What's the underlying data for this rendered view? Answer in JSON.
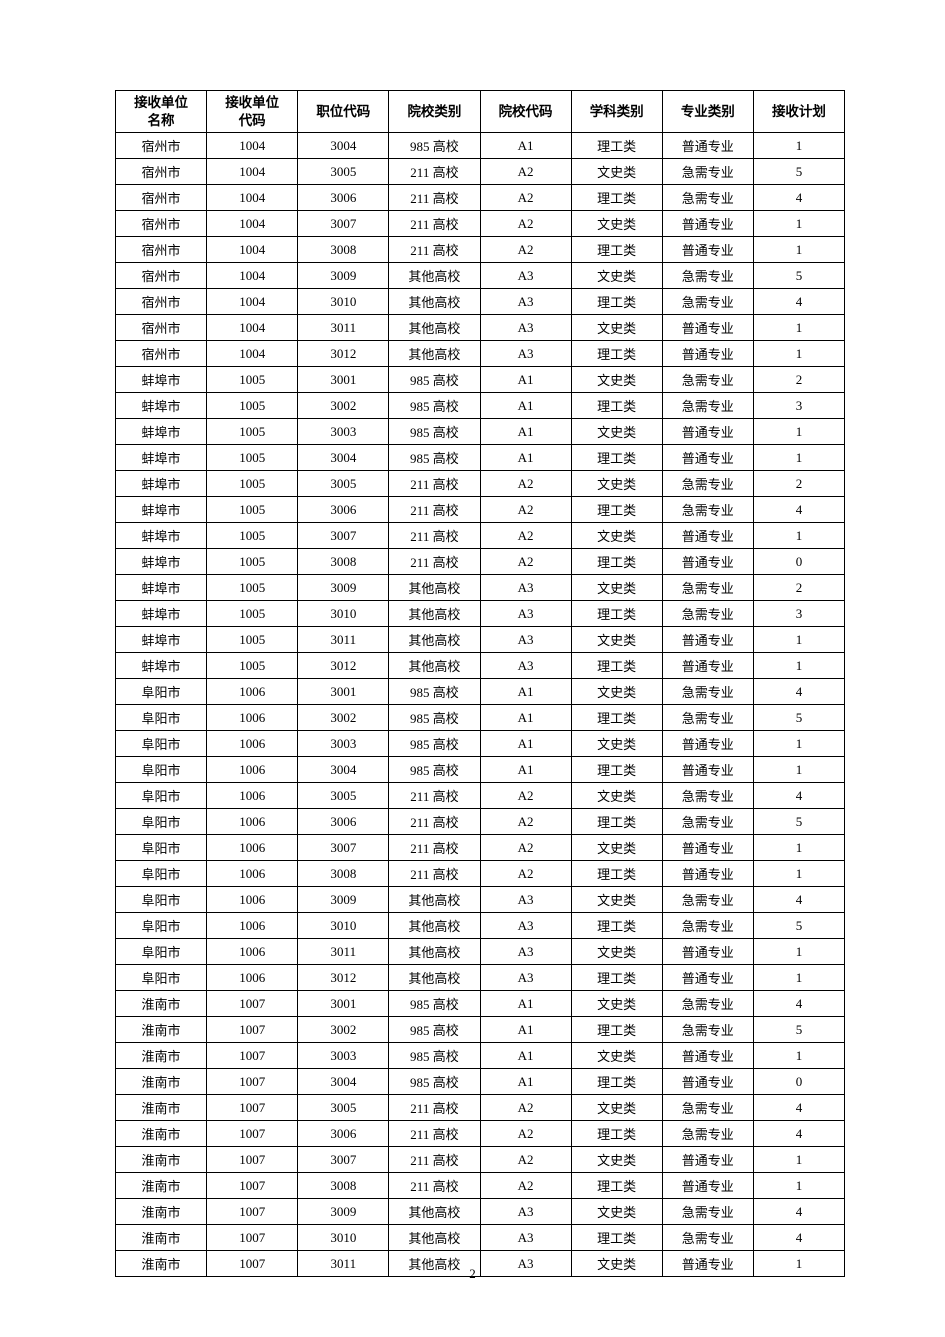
{
  "page_number": "2",
  "table": {
    "columns": [
      "接收单位\n名称",
      "接收单位\n代码",
      "职位代码",
      "院校类别",
      "院校代码",
      "学科类别",
      "专业类别",
      "接收计划"
    ],
    "rows": [
      [
        "宿州市",
        "1004",
        "3004",
        "985 高校",
        "A1",
        "理工类",
        "普通专业",
        "1"
      ],
      [
        "宿州市",
        "1004",
        "3005",
        "211 高校",
        "A2",
        "文史类",
        "急需专业",
        "5"
      ],
      [
        "宿州市",
        "1004",
        "3006",
        "211 高校",
        "A2",
        "理工类",
        "急需专业",
        "4"
      ],
      [
        "宿州市",
        "1004",
        "3007",
        "211 高校",
        "A2",
        "文史类",
        "普通专业",
        "1"
      ],
      [
        "宿州市",
        "1004",
        "3008",
        "211 高校",
        "A2",
        "理工类",
        "普通专业",
        "1"
      ],
      [
        "宿州市",
        "1004",
        "3009",
        "其他高校",
        "A3",
        "文史类",
        "急需专业",
        "5"
      ],
      [
        "宿州市",
        "1004",
        "3010",
        "其他高校",
        "A3",
        "理工类",
        "急需专业",
        "4"
      ],
      [
        "宿州市",
        "1004",
        "3011",
        "其他高校",
        "A3",
        "文史类",
        "普通专业",
        "1"
      ],
      [
        "宿州市",
        "1004",
        "3012",
        "其他高校",
        "A3",
        "理工类",
        "普通专业",
        "1"
      ],
      [
        "蚌埠市",
        "1005",
        "3001",
        "985 高校",
        "A1",
        "文史类",
        "急需专业",
        "2"
      ],
      [
        "蚌埠市",
        "1005",
        "3002",
        "985 高校",
        "A1",
        "理工类",
        "急需专业",
        "3"
      ],
      [
        "蚌埠市",
        "1005",
        "3003",
        "985 高校",
        "A1",
        "文史类",
        "普通专业",
        "1"
      ],
      [
        "蚌埠市",
        "1005",
        "3004",
        "985 高校",
        "A1",
        "理工类",
        "普通专业",
        "1"
      ],
      [
        "蚌埠市",
        "1005",
        "3005",
        "211 高校",
        "A2",
        "文史类",
        "急需专业",
        "2"
      ],
      [
        "蚌埠市",
        "1005",
        "3006",
        "211 高校",
        "A2",
        "理工类",
        "急需专业",
        "4"
      ],
      [
        "蚌埠市",
        "1005",
        "3007",
        "211 高校",
        "A2",
        "文史类",
        "普通专业",
        "1"
      ],
      [
        "蚌埠市",
        "1005",
        "3008",
        "211 高校",
        "A2",
        "理工类",
        "普通专业",
        "0"
      ],
      [
        "蚌埠市",
        "1005",
        "3009",
        "其他高校",
        "A3",
        "文史类",
        "急需专业",
        "2"
      ],
      [
        "蚌埠市",
        "1005",
        "3010",
        "其他高校",
        "A3",
        "理工类",
        "急需专业",
        "3"
      ],
      [
        "蚌埠市",
        "1005",
        "3011",
        "其他高校",
        "A3",
        "文史类",
        "普通专业",
        "1"
      ],
      [
        "蚌埠市",
        "1005",
        "3012",
        "其他高校",
        "A3",
        "理工类",
        "普通专业",
        "1"
      ],
      [
        "阜阳市",
        "1006",
        "3001",
        "985 高校",
        "A1",
        "文史类",
        "急需专业",
        "4"
      ],
      [
        "阜阳市",
        "1006",
        "3002",
        "985 高校",
        "A1",
        "理工类",
        "急需专业",
        "5"
      ],
      [
        "阜阳市",
        "1006",
        "3003",
        "985 高校",
        "A1",
        "文史类",
        "普通专业",
        "1"
      ],
      [
        "阜阳市",
        "1006",
        "3004",
        "985 高校",
        "A1",
        "理工类",
        "普通专业",
        "1"
      ],
      [
        "阜阳市",
        "1006",
        "3005",
        "211 高校",
        "A2",
        "文史类",
        "急需专业",
        "4"
      ],
      [
        "阜阳市",
        "1006",
        "3006",
        "211 高校",
        "A2",
        "理工类",
        "急需专业",
        "5"
      ],
      [
        "阜阳市",
        "1006",
        "3007",
        "211 高校",
        "A2",
        "文史类",
        "普通专业",
        "1"
      ],
      [
        "阜阳市",
        "1006",
        "3008",
        "211 高校",
        "A2",
        "理工类",
        "普通专业",
        "1"
      ],
      [
        "阜阳市",
        "1006",
        "3009",
        "其他高校",
        "A3",
        "文史类",
        "急需专业",
        "4"
      ],
      [
        "阜阳市",
        "1006",
        "3010",
        "其他高校",
        "A3",
        "理工类",
        "急需专业",
        "5"
      ],
      [
        "阜阳市",
        "1006",
        "3011",
        "其他高校",
        "A3",
        "文史类",
        "普通专业",
        "1"
      ],
      [
        "阜阳市",
        "1006",
        "3012",
        "其他高校",
        "A3",
        "理工类",
        "普通专业",
        "1"
      ],
      [
        "淮南市",
        "1007",
        "3001",
        "985 高校",
        "A1",
        "文史类",
        "急需专业",
        "4"
      ],
      [
        "淮南市",
        "1007",
        "3002",
        "985 高校",
        "A1",
        "理工类",
        "急需专业",
        "5"
      ],
      [
        "淮南市",
        "1007",
        "3003",
        "985 高校",
        "A1",
        "文史类",
        "普通专业",
        "1"
      ],
      [
        "淮南市",
        "1007",
        "3004",
        "985 高校",
        "A1",
        "理工类",
        "普通专业",
        "0"
      ],
      [
        "淮南市",
        "1007",
        "3005",
        "211 高校",
        "A2",
        "文史类",
        "急需专业",
        "4"
      ],
      [
        "淮南市",
        "1007",
        "3006",
        "211 高校",
        "A2",
        "理工类",
        "急需专业",
        "4"
      ],
      [
        "淮南市",
        "1007",
        "3007",
        "211 高校",
        "A2",
        "文史类",
        "普通专业",
        "1"
      ],
      [
        "淮南市",
        "1007",
        "3008",
        "211 高校",
        "A2",
        "理工类",
        "普通专业",
        "1"
      ],
      [
        "淮南市",
        "1007",
        "3009",
        "其他高校",
        "A3",
        "文史类",
        "急需专业",
        "4"
      ],
      [
        "淮南市",
        "1007",
        "3010",
        "其他高校",
        "A3",
        "理工类",
        "急需专业",
        "4"
      ],
      [
        "淮南市",
        "1007",
        "3011",
        "其他高校",
        "A3",
        "文史类",
        "普通专业",
        "1"
      ]
    ]
  }
}
